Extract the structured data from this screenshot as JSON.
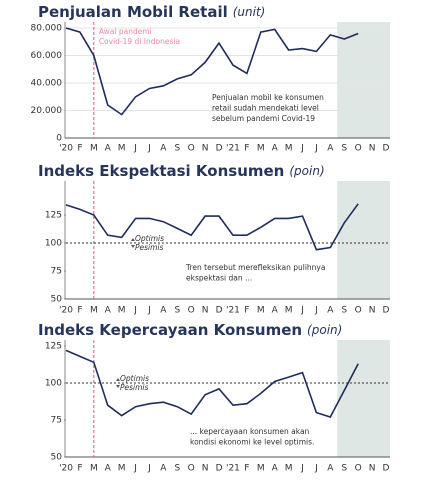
{
  "chart_data": [
    {
      "type": "line",
      "title": "Penjualan Mobil Retail",
      "unit": "(unit)",
      "categories": [
        "'20",
        "F",
        "M",
        "A",
        "M",
        "J",
        "J",
        "A",
        "S",
        "O",
        "N",
        "D",
        "'21",
        "F",
        "M",
        "A",
        "M",
        "J",
        "J",
        "A",
        "S",
        "O",
        "N",
        "D"
      ],
      "values": [
        80000,
        77000,
        60000,
        24000,
        17000,
        30000,
        36000,
        38000,
        43000,
        46000,
        55000,
        69000,
        53000,
        47000,
        77000,
        79000,
        64000,
        65000,
        63000,
        75000,
        72000,
        76000,
        null,
        null
      ],
      "color": "#1f2d5c",
      "ylim": [
        0,
        80000
      ],
      "yticks": [
        0,
        {
          "value": 20000,
          "label": "20.000"
        },
        {
          "value": 40000,
          "label": "40.000"
        },
        {
          "value": 60000,
          "label": "60.000"
        },
        {
          "value": 80000,
          "label": "80.000"
        }
      ],
      "grid": true,
      "pandemic_marker": {
        "index": 2,
        "label": [
          "Awal pandemi",
          "Covid-19 di Indonesia"
        ]
      },
      "shaded_from": 20,
      "annotation": [
        "Penjualan mobil ke konsumen",
        "retail sudah mendekati level",
        "sebelum pandemi Covid-19"
      ]
    },
    {
      "type": "line",
      "title": "Indeks Ekspektasi Konsumen",
      "unit": "(poin)",
      "categories": [
        "'20",
        "F",
        "M",
        "A",
        "M",
        "J",
        "J",
        "A",
        "S",
        "O",
        "N",
        "D",
        "'21",
        "F",
        "M",
        "A",
        "M",
        "J",
        "J",
        "A",
        "S",
        "O",
        "N",
        "D"
      ],
      "values": [
        134,
        130,
        125,
        107,
        105,
        122,
        122,
        119,
        113,
        107,
        124,
        124,
        107,
        107,
        114,
        122,
        122,
        124,
        94,
        96,
        118,
        135,
        null,
        null
      ],
      "color": "#1f2d5c",
      "ylim": [
        50,
        150
      ],
      "yticks": [
        50,
        75,
        100,
        125
      ],
      "grid": false,
      "pandemic_marker": {
        "index": 2
      },
      "shaded_from": 20,
      "reference": {
        "value": 100,
        "above": "Optimis",
        "below": "Pesimis"
      },
      "annotation": [
        "Tren tersebut merefleksikan pulihnya",
        "ekspektasi dan ..."
      ]
    },
    {
      "type": "line",
      "title": "Indeks Kepercayaan Konsumen",
      "unit": "(poin)",
      "categories": [
        "'20",
        "F",
        "M",
        "A",
        "M",
        "J",
        "J",
        "A",
        "S",
        "O",
        "N",
        "D",
        "'21",
        "F",
        "M",
        "A",
        "M",
        "J",
        "J",
        "A",
        "S",
        "O",
        "N",
        "D"
      ],
      "values": [
        122,
        118,
        114,
        85,
        78,
        84,
        86,
        87,
        84,
        79,
        92,
        96,
        85,
        86,
        93,
        101,
        104,
        107,
        80,
        77,
        95,
        113,
        null,
        null
      ],
      "color": "#1f2d5c",
      "ylim": [
        50,
        125
      ],
      "yticks": [
        50,
        75,
        100,
        125
      ],
      "grid": false,
      "pandemic_marker": {
        "index": 2
      },
      "shaded_from": 20,
      "reference": {
        "value": 100,
        "above": "Optimis",
        "below": "Pesimis"
      },
      "annotation": [
        "... kepercayaan konsumen akan",
        "kondisi ekonomi ke level optimis."
      ]
    }
  ]
}
